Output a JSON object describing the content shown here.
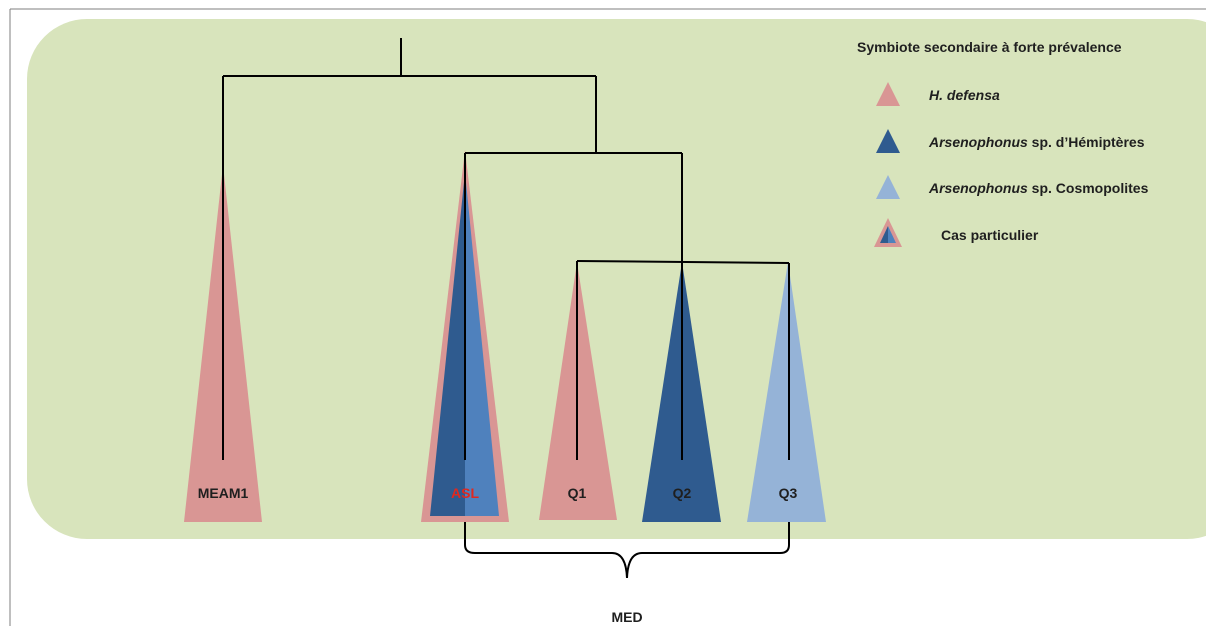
{
  "legend": {
    "title": "Symbiote secondaire à forte prévalence",
    "items": [
      {
        "italic": "H. defensa",
        "rest": "",
        "color": "#d99694"
      },
      {
        "italic": "Arsenophonus",
        "rest": " sp. d’Hémiptères",
        "color": "#2f5b8f"
      },
      {
        "italic": "Arsenophonus",
        "rest": " sp. Cosmopolites",
        "color": "#95b3d7"
      },
      {
        "italic": "",
        "rest": "Cas particulier",
        "color": "mixed"
      }
    ]
  },
  "clades": [
    {
      "name": "MEAM1",
      "symbiont": "H. defensa",
      "label_color": "#1f1f1f"
    },
    {
      "name": "ASL",
      "symbiont": "Cas particulier",
      "label_color": "#e0281e"
    },
    {
      "name": "Q1",
      "symbiont": "H. defensa",
      "label_color": "#1f1f1f"
    },
    {
      "name": "Q2",
      "symbiont": "Arsenophonus sp. d’Hémiptères",
      "label_color": "#1f1f1f"
    },
    {
      "name": "Q3",
      "symbiont": "Arsenophonus sp. Cosmopolites",
      "label_color": "#1f1f1f"
    }
  ],
  "group_label": "MED",
  "colors": {
    "background_panel": "#d8e4bc",
    "h_defensa": "#d99694",
    "arseno_hemipteres": "#2f5b8f",
    "arseno_cosmopolites": "#95b3d7",
    "asl_light_blue": "#4f81bd",
    "tree_lines": "#000000"
  }
}
